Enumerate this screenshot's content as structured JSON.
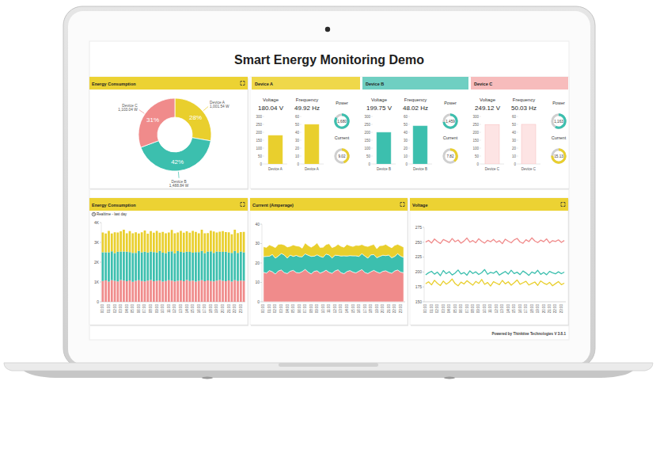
{
  "title": "Smart Energy Monitoring Demo",
  "footer": "Powered by Thinktive Technologies V 3.8.1",
  "device_panels": {
    "voltage_title": "Voltage",
    "frequency_title": "Frequency",
    "power_title": "Power",
    "current_title": "Current",
    "voltage_ylim": [
      0,
      300
    ],
    "voltage_yticks": [
      0,
      50,
      100,
      150,
      200,
      250,
      300
    ],
    "frequency_ylim": [
      0,
      60
    ],
    "frequency_yticks": [
      0,
      10,
      20,
      30,
      40,
      50,
      60
    ],
    "power_range": [
      0,
      2000
    ],
    "current_range": [
      0,
      20
    ],
    "power_color": "#3cbfae",
    "current_color": "#e9cf2d",
    "devices": [
      {
        "name": "Device A",
        "color": "#e9cf2d",
        "header_color": "#efd84a",
        "voltage": 180.04,
        "voltage_label": "180.04 V",
        "frequency": 49.92,
        "frequency_label": "49.92 Hz",
        "power": 1680,
        "power_label": "1,680",
        "current": 9.02
      },
      {
        "name": "Device B",
        "color": "#3cbfae",
        "header_color": "#6fcfc2",
        "voltage": 199.75,
        "voltage_label": "199.75 V",
        "frequency": 48.02,
        "frequency_label": "48.02 Hz",
        "power": 1459,
        "power_label": "1,459",
        "current": 7.82
      },
      {
        "name": "Device C",
        "color": "#fde4e4",
        "header_color": "#f7bcbc",
        "voltage": 249.12,
        "voltage_label": "249.12 V",
        "frequency": 50.03,
        "frequency_label": "50.03 Hz",
        "power": 1163,
        "power_label": "1,163",
        "current": 15.13
      }
    ]
  },
  "chart_data": [
    {
      "type": "donut",
      "title": "Energy Consumption",
      "categories": [
        "Device A",
        "Device B",
        "Device C"
      ],
      "values": [
        28,
        42,
        31
      ],
      "value_labels": [
        "28%",
        "42%",
        "31%"
      ],
      "data_labels": true,
      "colors": [
        "#e9cf2d",
        "#3cbfae",
        "#f08b8b"
      ],
      "power": [
        {
          "value": 1001.54,
          "label": "1,001.54 W"
        },
        {
          "value": 1488.84,
          "label": "1,488.84 W"
        },
        {
          "value": 1103.04,
          "label": "1,103.04 W"
        }
      ]
    },
    {
      "type": "bar",
      "stacked": true,
      "grid": false,
      "title": "Energy Consumption",
      "subtitle": "Realtime - last day",
      "categories": [
        "00:00",
        null,
        "01:00",
        null,
        "02:00",
        null,
        "03:00",
        null,
        "04:00",
        null,
        "05:00",
        null,
        "06:00",
        null,
        "07:00",
        null,
        "08:00",
        null,
        "09:00",
        null,
        "10:00",
        null,
        "11:00",
        null,
        "12:00",
        null,
        "13:00",
        null,
        "14:00",
        null,
        "15:00",
        null,
        "16:00",
        null,
        "17:00",
        null,
        "18:00",
        null,
        "19:00",
        null,
        "20:00",
        null,
        "21:00",
        null,
        "22:00",
        null,
        "23:00",
        null
      ],
      "series": [
        {
          "color": "#f08b8b",
          "values": [
            1050,
            1080,
            1020,
            1090,
            1060,
            1030,
            1100,
            1070,
            1040,
            1080,
            1010,
            1060,
            1090,
            1050,
            1030,
            1070,
            1100,
            1040,
            1060,
            1080,
            1020,
            1050,
            1090,
            1070,
            1030,
            1060,
            1080,
            1040,
            1100,
            1050,
            1070,
            1020,
            1060,
            1090,
            1040,
            1080,
            1050,
            1030,
            1070,
            1100,
            1060,
            1040,
            1080,
            1020,
            1090,
            1050,
            1070,
            1060
          ]
        },
        {
          "color": "#3cbfae",
          "values": [
            1450,
            1420,
            1480,
            1460,
            1400,
            1500,
            1440,
            1470,
            1490,
            1430,
            1460,
            1410,
            1480,
            1450,
            1500,
            1420,
            1440,
            1470,
            1430,
            1490,
            1460,
            1410,
            1450,
            1480,
            1420,
            1500,
            1440,
            1460,
            1430,
            1470,
            1410,
            1490,
            1450,
            1480,
            1420,
            1460,
            1500,
            1440,
            1470,
            1430,
            1460,
            1490,
            1410,
            1450,
            1480,
            1420,
            1470,
            1440
          ]
        },
        {
          "color": "#e9cf2d",
          "values": [
            1000,
            950,
            1080,
            900,
            1050,
            970,
            1020,
            1100,
            930,
            1060,
            990,
            1040,
            880,
            1010,
            1070,
            950,
            1030,
            980,
            1090,
            920,
            1050,
            1000,
            960,
            1080,
            1010,
            940,
            1060,
            990,
            1030,
            970,
            1100,
            1020,
            950,
            1070,
            1000,
            930,
            1040,
            1080,
            960,
            1010,
            1050,
            990,
            1020,
            940,
            1070,
            1000,
            980,
            1030
          ]
        }
      ],
      "ylim": [
        0,
        4000
      ],
      "yticks": [
        0,
        {
          "value": 1000,
          "label": "1K"
        },
        {
          "value": 2000,
          "label": "2K"
        },
        {
          "value": 3000,
          "label": "3K"
        },
        {
          "value": 4000,
          "label": "4K"
        }
      ]
    },
    {
      "type": "area",
      "stacked": true,
      "grid": false,
      "title": "Current (Amperage)",
      "categories": [
        "00:00",
        null,
        "01:00",
        null,
        "02:00",
        null,
        "03:00",
        null,
        "04:00",
        null,
        "05:00",
        null,
        "06:00",
        null,
        "07:00",
        null,
        "08:00",
        null,
        "09:00",
        null,
        "10:00",
        null,
        "11:00",
        null,
        "12:00",
        null,
        "13:00",
        null,
        "14:00",
        null,
        "15:00",
        null,
        "16:00",
        null,
        "17:00",
        null,
        "18:00",
        null,
        "19:00",
        null,
        "20:00",
        null,
        "21:00",
        null,
        "22:00",
        null,
        "23:00",
        null
      ],
      "series": [
        {
          "color": "#f08b8b",
          "values": [
            15.2,
            14.8,
            16.1,
            15.5,
            14.3,
            15.9,
            16.4,
            15.0,
            14.6,
            15.8,
            16.2,
            15.1,
            14.9,
            15.6,
            16.7,
            15.3,
            14.4,
            15.7,
            16.0,
            14.8,
            15.4,
            16.3,
            15.2,
            14.7,
            15.9,
            16.5,
            15.0,
            14.5,
            15.6,
            16.1,
            15.3,
            14.9,
            15.8,
            16.6,
            15.1,
            14.6,
            15.5,
            16.2,
            15.4,
            14.8,
            15.7,
            16.0,
            15.2,
            14.7,
            15.9,
            16.4,
            15.3,
            15.0
          ]
        },
        {
          "color": "#3cbfae",
          "values": [
            8.1,
            8.6,
            7.4,
            8.9,
            8.2,
            7.7,
            8.5,
            9.1,
            7.9,
            8.3,
            7.2,
            8.8,
            8.4,
            7.6,
            8.0,
            8.7,
            9.0,
            7.8,
            8.2,
            8.6,
            7.5,
            8.3,
            8.9,
            7.9,
            8.1,
            7.4,
            8.6,
            9.2,
            8.0,
            7.7,
            8.4,
            8.8,
            7.6,
            8.2,
            8.5,
            7.9,
            8.7,
            8.1,
            7.3,
            8.6,
            8.3,
            7.8,
            8.9,
            8.0,
            7.5,
            8.4,
            8.2,
            7.9
          ]
        },
        {
          "color": "#e9cf2d",
          "values": [
            5.1,
            4.6,
            5.8,
            4.3,
            5.4,
            6.0,
            4.8,
            5.2,
            5.7,
            4.5,
            5.9,
            4.9,
            5.3,
            4.4,
            5.6,
            5.0,
            4.7,
            5.5,
            6.1,
            4.6,
            5.2,
            4.9,
            5.8,
            5.3,
            4.5,
            5.7,
            5.0,
            4.4,
            5.9,
            5.1,
            4.8,
            5.4,
            5.6,
            4.7,
            5.2,
            6.0,
            4.9,
            5.3,
            4.6,
            5.5,
            5.0,
            5.8,
            4.5,
            5.1,
            5.7,
            4.8,
            5.4,
            5.2
          ]
        }
      ],
      "ylim": [
        0,
        40
      ],
      "yticks": [
        0,
        10,
        20,
        30,
        40
      ]
    },
    {
      "type": "line",
      "grid": false,
      "title": "Voltage",
      "categories": [
        "00:00",
        null,
        "01:00",
        null,
        "02:00",
        null,
        "03:00",
        null,
        "04:00",
        null,
        "05:00",
        null,
        "06:00",
        null,
        "07:00",
        null,
        "08:00",
        null,
        "09:00",
        null,
        "10:00",
        null,
        "11:00",
        null,
        "12:00",
        null,
        "13:00",
        null,
        "14:00",
        null,
        "15:00",
        null,
        "16:00",
        null,
        "17:00",
        null,
        "18:00",
        null,
        "19:00",
        null,
        "20:00",
        null,
        "21:00",
        null,
        "22:00",
        null,
        "23:00",
        null
      ],
      "series": [
        {
          "color": "#f08b8b",
          "values": [
            250.2,
            253.1,
            248.7,
            255.4,
            251.0,
            247.9,
            254.6,
            252.3,
            249.5,
            256.2,
            250.8,
            253.7,
            248.4,
            251.9,
            257.0,
            250.1,
            252.8,
            249.2,
            255.9,
            251.4,
            248.6,
            253.3,
            250.7,
            254.8,
            249.9,
            252.5,
            247.6,
            255.1,
            251.8,
            249.0,
            253.9,
            256.4,
            250.4,
            248.3,
            254.2,
            251.1,
            257.3,
            252.0,
            249.4,
            253.5,
            250.9,
            255.6,
            248.8,
            252.7,
            251.3,
            254.0,
            249.7,
            252.9
          ]
        },
        {
          "color": "#3cbfae",
          "values": [
            195.3,
            198.7,
            201.2,
            196.4,
            199.8,
            193.9,
            202.5,
            197.1,
            200.6,
            195.0,
            198.2,
            203.4,
            196.8,
            199.1,
            194.6,
            201.9,
            197.5,
            200.3,
            195.8,
            198.9,
            204.1,
            196.2,
            199.5,
            197.9,
            201.4,
            194.8,
            198.0,
            200.9,
            196.5,
            203.0,
            197.3,
            199.7,
            195.6,
            201.7,
            198.4,
            194.3,
            200.1,
            197.6,
            202.8,
            196.0,
            199.2,
            195.4,
            201.0,
            198.6,
            196.9,
            200.4,
            197.2,
            199.9
          ]
        },
        {
          "color": "#e9cf2d",
          "values": [
            180.2,
            183.5,
            178.4,
            186.1,
            181.0,
            177.3,
            184.7,
            179.6,
            182.9,
            188.2,
            180.5,
            176.8,
            183.1,
            179.9,
            185.4,
            181.7,
            178.0,
            184.2,
            180.8,
            187.5,
            179.2,
            182.4,
            176.5,
            183.8,
            181.3,
            178.7,
            185.9,
            180.1,
            183.6,
            177.9,
            182.0,
            186.6,
            179.4,
            181.9,
            184.5,
            178.2,
            180.7,
            183.3,
            177.6,
            185.0,
            181.5,
            179.0,
            182.7,
            176.9,
            180.4,
            183.9,
            178.8,
            181.2
          ]
        }
      ],
      "ylim": [
        150,
        275
      ],
      "yticks": [
        150,
        175,
        200,
        225,
        250,
        275
      ]
    }
  ]
}
